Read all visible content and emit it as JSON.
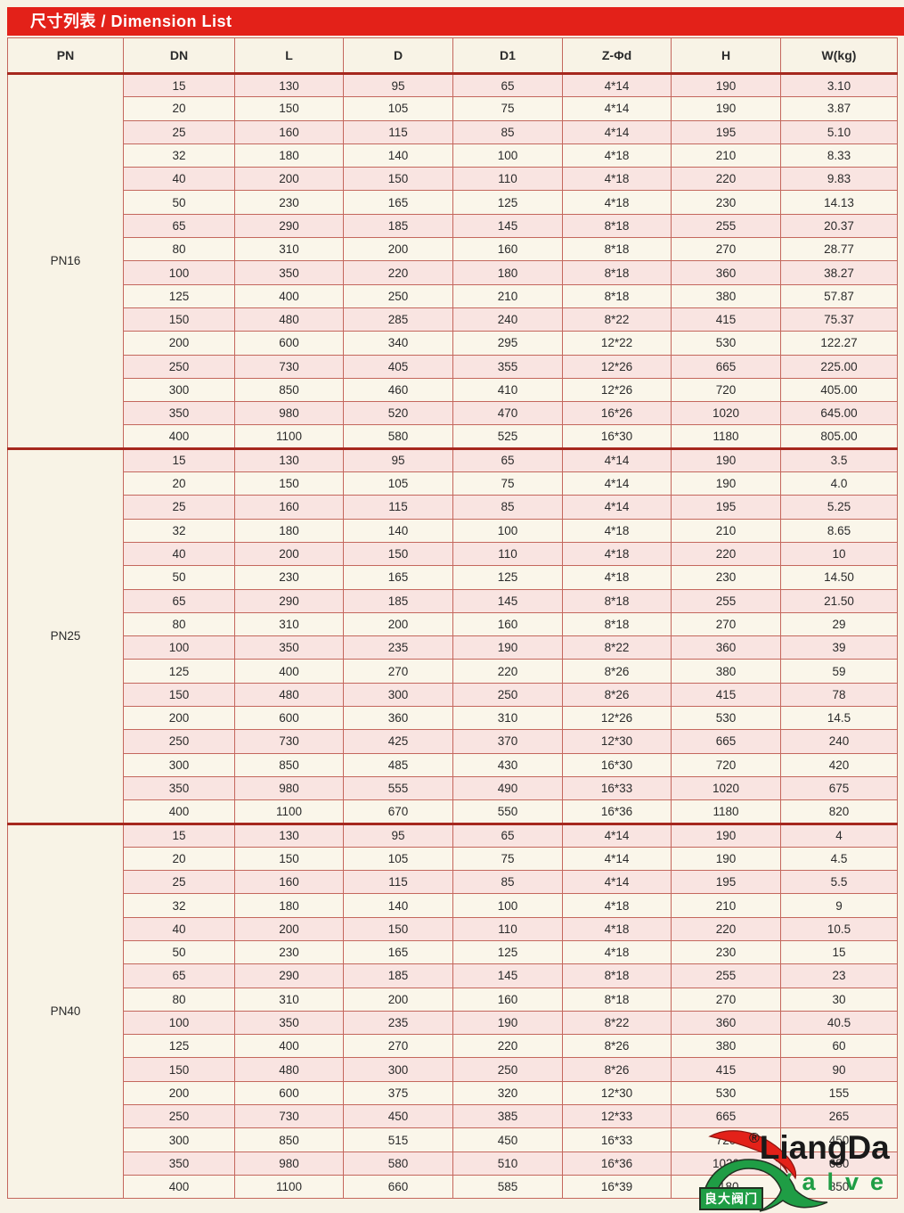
{
  "title": "尺寸列表 / Dimension List",
  "table": {
    "columns": [
      "PN",
      "DN",
      "L",
      "D",
      "D1",
      "Z-Φd",
      "H",
      "W(kg)"
    ],
    "groups": [
      {
        "label": "PN16",
        "rows": [
          [
            "15",
            "130",
            "95",
            "65",
            "4*14",
            "190",
            "3.10"
          ],
          [
            "20",
            "150",
            "105",
            "75",
            "4*14",
            "190",
            "3.87"
          ],
          [
            "25",
            "160",
            "115",
            "85",
            "4*14",
            "195",
            "5.10"
          ],
          [
            "32",
            "180",
            "140",
            "100",
            "4*18",
            "210",
            "8.33"
          ],
          [
            "40",
            "200",
            "150",
            "110",
            "4*18",
            "220",
            "9.83"
          ],
          [
            "50",
            "230",
            "165",
            "125",
            "4*18",
            "230",
            "14.13"
          ],
          [
            "65",
            "290",
            "185",
            "145",
            "8*18",
            "255",
            "20.37"
          ],
          [
            "80",
            "310",
            "200",
            "160",
            "8*18",
            "270",
            "28.77"
          ],
          [
            "100",
            "350",
            "220",
            "180",
            "8*18",
            "360",
            "38.27"
          ],
          [
            "125",
            "400",
            "250",
            "210",
            "8*18",
            "380",
            "57.87"
          ],
          [
            "150",
            "480",
            "285",
            "240",
            "8*22",
            "415",
            "75.37"
          ],
          [
            "200",
            "600",
            "340",
            "295",
            "12*22",
            "530",
            "122.27"
          ],
          [
            "250",
            "730",
            "405",
            "355",
            "12*26",
            "665",
            "225.00"
          ],
          [
            "300",
            "850",
            "460",
            "410",
            "12*26",
            "720",
            "405.00"
          ],
          [
            "350",
            "980",
            "520",
            "470",
            "16*26",
            "1020",
            "645.00"
          ],
          [
            "400",
            "1100",
            "580",
            "525",
            "16*30",
            "1180",
            "805.00"
          ]
        ]
      },
      {
        "label": "PN25",
        "rows": [
          [
            "15",
            "130",
            "95",
            "65",
            "4*14",
            "190",
            "3.5"
          ],
          [
            "20",
            "150",
            "105",
            "75",
            "4*14",
            "190",
            "4.0"
          ],
          [
            "25",
            "160",
            "115",
            "85",
            "4*14",
            "195",
            "5.25"
          ],
          [
            "32",
            "180",
            "140",
            "100",
            "4*18",
            "210",
            "8.65"
          ],
          [
            "40",
            "200",
            "150",
            "110",
            "4*18",
            "220",
            "10"
          ],
          [
            "50",
            "230",
            "165",
            "125",
            "4*18",
            "230",
            "14.50"
          ],
          [
            "65",
            "290",
            "185",
            "145",
            "8*18",
            "255",
            "21.50"
          ],
          [
            "80",
            "310",
            "200",
            "160",
            "8*18",
            "270",
            "29"
          ],
          [
            "100",
            "350",
            "235",
            "190",
            "8*22",
            "360",
            "39"
          ],
          [
            "125",
            "400",
            "270",
            "220",
            "8*26",
            "380",
            "59"
          ],
          [
            "150",
            "480",
            "300",
            "250",
            "8*26",
            "415",
            "78"
          ],
          [
            "200",
            "600",
            "360",
            "310",
            "12*26",
            "530",
            "14.5"
          ],
          [
            "250",
            "730",
            "425",
            "370",
            "12*30",
            "665",
            "240"
          ],
          [
            "300",
            "850",
            "485",
            "430",
            "16*30",
            "720",
            "420"
          ],
          [
            "350",
            "980",
            "555",
            "490",
            "16*33",
            "1020",
            "675"
          ],
          [
            "400",
            "1100",
            "670",
            "550",
            "16*36",
            "1180",
            "820"
          ]
        ]
      },
      {
        "label": "PN40",
        "rows": [
          [
            "15",
            "130",
            "95",
            "65",
            "4*14",
            "190",
            "4"
          ],
          [
            "20",
            "150",
            "105",
            "75",
            "4*14",
            "190",
            "4.5"
          ],
          [
            "25",
            "160",
            "115",
            "85",
            "4*14",
            "195",
            "5.5"
          ],
          [
            "32",
            "180",
            "140",
            "100",
            "4*18",
            "210",
            "9"
          ],
          [
            "40",
            "200",
            "150",
            "110",
            "4*18",
            "220",
            "10.5"
          ],
          [
            "50",
            "230",
            "165",
            "125",
            "4*18",
            "230",
            "15"
          ],
          [
            "65",
            "290",
            "185",
            "145",
            "8*18",
            "255",
            "23"
          ],
          [
            "80",
            "310",
            "200",
            "160",
            "8*18",
            "270",
            "30"
          ],
          [
            "100",
            "350",
            "235",
            "190",
            "8*22",
            "360",
            "40.5"
          ],
          [
            "125",
            "400",
            "270",
            "220",
            "8*26",
            "380",
            "60"
          ],
          [
            "150",
            "480",
            "300",
            "250",
            "8*26",
            "415",
            "90"
          ],
          [
            "200",
            "600",
            "375",
            "320",
            "12*30",
            "530",
            "155"
          ],
          [
            "250",
            "730",
            "450",
            "385",
            "12*33",
            "665",
            "265"
          ],
          [
            "300",
            "850",
            "515",
            "450",
            "16*33",
            "720",
            "450"
          ],
          [
            "350",
            "980",
            "580",
            "510",
            "16*36",
            "1020",
            "680"
          ],
          [
            "400",
            "1100",
            "660",
            "585",
            "16*39",
            "1180",
            "850"
          ]
        ]
      }
    ]
  },
  "logo": {
    "registered": "®",
    "brand": "LiangDa",
    "sub": "Valve",
    "cn": "良大阀门"
  },
  "colors": {
    "banner_red": "#e32119",
    "row_pink": "#f9e4e1",
    "row_cream": "#faf6ea",
    "thin_border": "#c4675d",
    "thick_divider": "#a6281e",
    "logo_green": "#1f9d45"
  }
}
